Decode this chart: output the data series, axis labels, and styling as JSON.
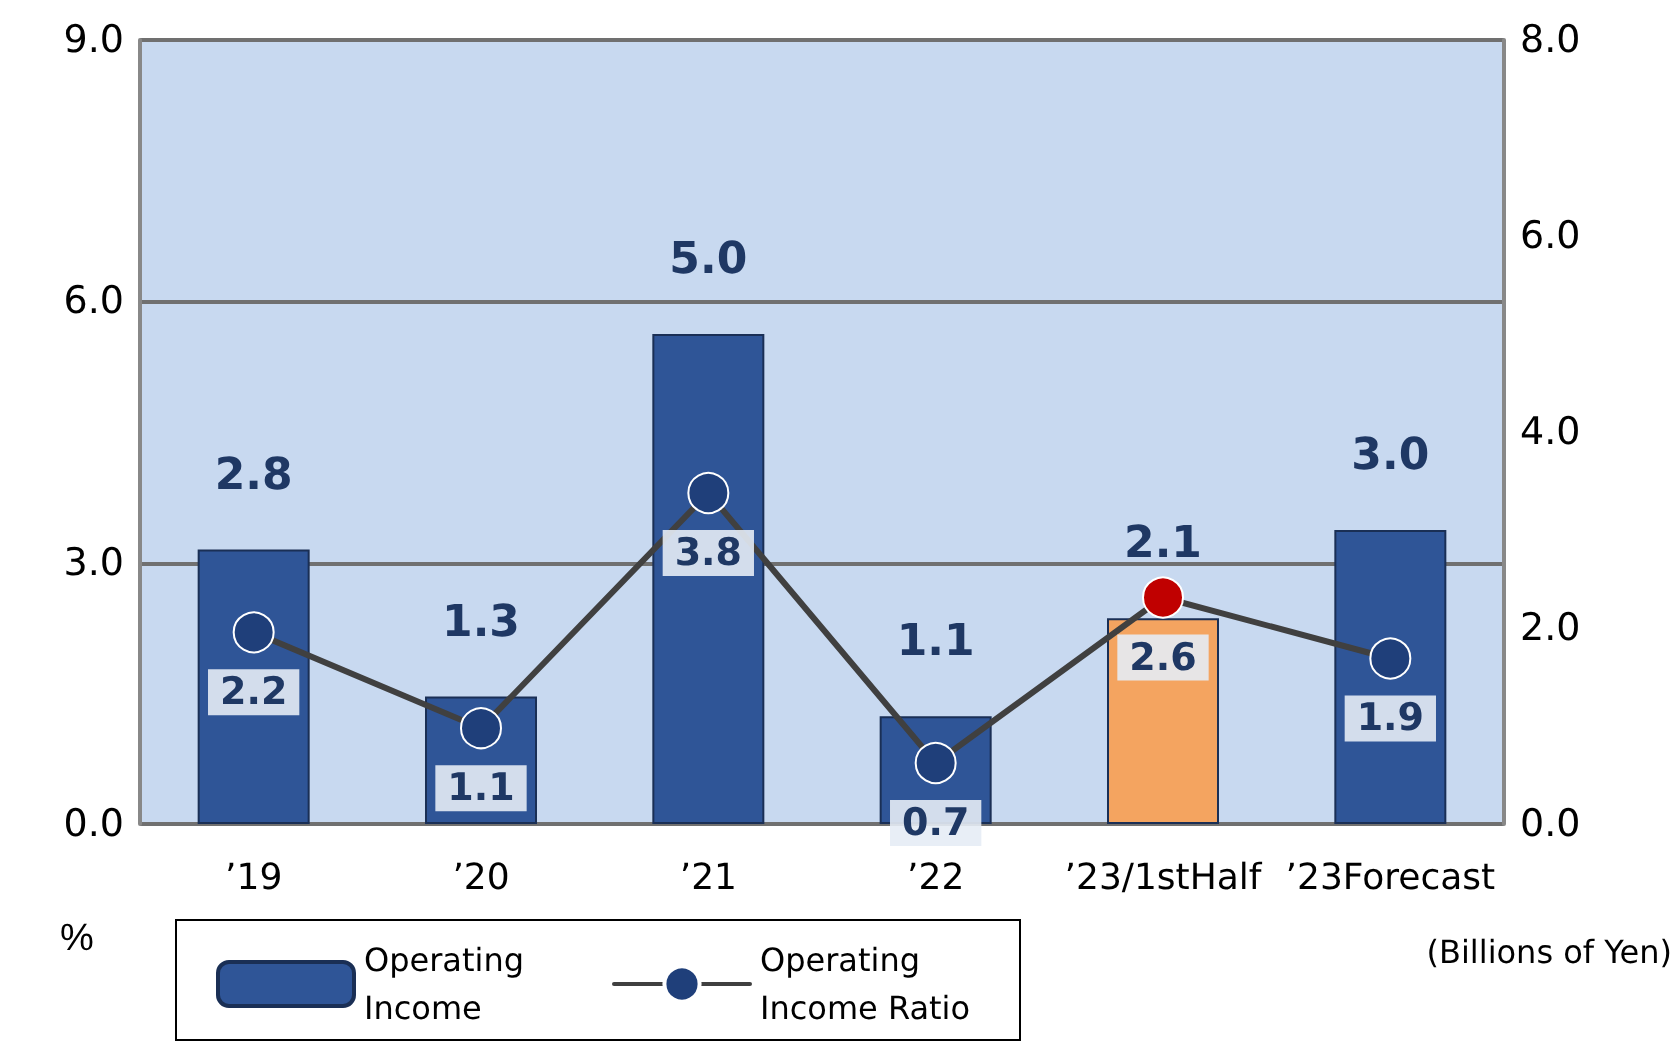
{
  "chart_data": {
    "type": "bar",
    "categories": [
      "’19",
      "’20",
      "’21",
      "’22",
      "’23/1stHalf",
      "’23Forecast"
    ],
    "series": [
      {
        "name": "Operating Income",
        "axis": "y2",
        "color": "#2f5597",
        "colors": [
          "#2f5597",
          "#2f5597",
          "#2f5597",
          "#2f5597",
          "#f4a460",
          "#2f5597"
        ],
        "values": [
          2.8,
          1.3,
          5.0,
          1.1,
          2.1,
          3.0
        ],
        "value_labels": [
          "2.8",
          "1.3",
          "5.0",
          "1.1",
          "2.1",
          "3.0"
        ]
      },
      {
        "name": "Operating Income Ratio",
        "type": "line",
        "axis": "y",
        "color": "#404040",
        "colors": [
          "#1f3f7a",
          "#1f3f7a",
          "#1f3f7a",
          "#1f3f7a",
          "#c00000",
          "#1f3f7a"
        ],
        "values": [
          2.2,
          1.1,
          3.8,
          0.7,
          2.6,
          1.9
        ],
        "value_labels": [
          "2.2",
          "1.1",
          "3.8",
          "0.7",
          "2.6",
          "1.9"
        ]
      }
    ],
    "ylabel": "%",
    "y2label": "(Billions of Yen)",
    "ylim": [
      0,
      9
    ],
    "yticks": [
      {
        "value": 0,
        "label": "0.0"
      },
      {
        "value": 3,
        "label": "3.0"
      },
      {
        "value": 6,
        "label": "6.0"
      },
      {
        "value": 9,
        "label": "9.0"
      }
    ],
    "y2lim": [
      0,
      8
    ],
    "y2ticks": [
      {
        "value": 0,
        "label": "0.0"
      },
      {
        "value": 2,
        "label": "2.0"
      },
      {
        "value": 4,
        "label": "4.0"
      },
      {
        "value": 6,
        "label": "6.0"
      },
      {
        "value": 8,
        "label": "8.0"
      }
    ],
    "grid": "y",
    "legend": "bottom left",
    "marker": "circle",
    "line_style": "solid"
  }
}
